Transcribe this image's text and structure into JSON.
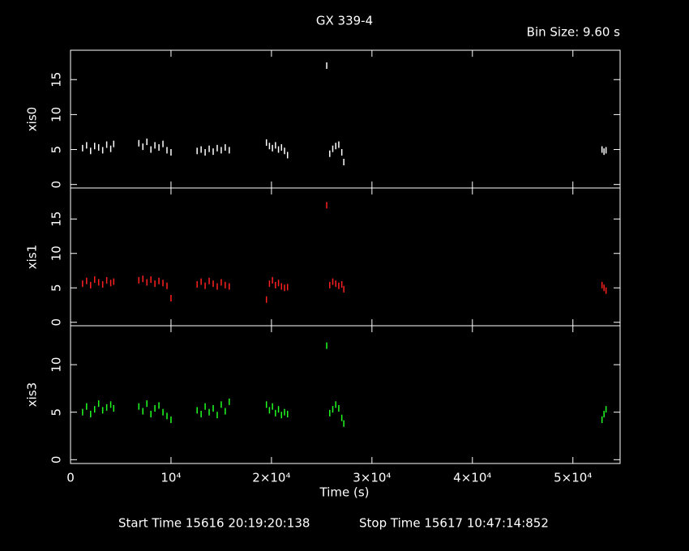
{
  "chart_data": [
    {
      "type": "scatter",
      "title": "GX 339-4",
      "subtitle": "Bin Size: 9.60 s",
      "ylabel": "xis0",
      "color": "#ffffff",
      "x": [
        1200,
        1600,
        2000,
        2400,
        2800,
        3200,
        3600,
        4000,
        4300,
        6800,
        7200,
        7600,
        8000,
        8400,
        8800,
        9200,
        9600,
        10000,
        12600,
        13000,
        13400,
        13800,
        14200,
        14600,
        15000,
        15400,
        15800,
        19500,
        19800,
        20100,
        20400,
        20700,
        21000,
        21300,
        21600,
        25500,
        25800,
        26100,
        26400,
        26700,
        27000,
        27200,
        52900,
        53100,
        53300
      ],
      "values": [
        5.2,
        5.6,
        4.8,
        5.5,
        5.3,
        4.9,
        5.7,
        5.1,
        5.8,
        5.9,
        5.4,
        6.1,
        5.0,
        5.6,
        5.3,
        5.8,
        4.9,
        4.6,
        4.8,
        5.0,
        4.6,
        5.1,
        4.7,
        5.2,
        4.9,
        5.3,
        4.9,
        6.0,
        5.5,
        5.2,
        5.6,
        5.0,
        5.3,
        4.8,
        4.2,
        17.0,
        4.4,
        5.1,
        5.5,
        5.7,
        4.6,
        3.2,
        5.0,
        4.7,
        4.9
      ],
      "ylim": [
        -0.5,
        19.2
      ],
      "yticks": [
        0,
        5,
        10,
        15
      ]
    },
    {
      "type": "scatter",
      "ylabel": "xis1",
      "color": "#ff2020",
      "x": [
        1200,
        1600,
        2000,
        2400,
        2800,
        3200,
        3600,
        4000,
        4300,
        6800,
        7200,
        7600,
        8000,
        8400,
        8800,
        9200,
        9600,
        10000,
        12600,
        13000,
        13400,
        13800,
        14200,
        14600,
        15000,
        15400,
        15800,
        19500,
        19800,
        20100,
        20400,
        20700,
        21000,
        21300,
        21600,
        25500,
        25800,
        26100,
        26400,
        26700,
        27000,
        27200,
        52900,
        53100,
        53300
      ],
      "values": [
        5.6,
        6.0,
        5.4,
        6.2,
        5.8,
        5.5,
        6.1,
        5.7,
        5.9,
        6.1,
        6.3,
        5.8,
        6.2,
        5.6,
        6.0,
        5.7,
        5.3,
        3.5,
        5.5,
        5.9,
        5.3,
        6.0,
        5.6,
        5.2,
        5.8,
        5.4,
        5.2,
        3.3,
        5.6,
        6.1,
        5.4,
        5.7,
        5.2,
        5.0,
        5.1,
        17.0,
        5.4,
        5.9,
        5.6,
        5.3,
        5.5,
        4.8,
        5.4,
        5.0,
        4.6
      ],
      "ylim": [
        -0.5,
        19.5
      ],
      "yticks": [
        0,
        5,
        10,
        15
      ]
    },
    {
      "type": "scatter",
      "ylabel": "xis3",
      "color": "#20ff20",
      "xlabel": "Time (s)",
      "start_time": "Start Time 15616 20:19:20:138",
      "stop_time": "Stop Time 15617 10:47:14:852",
      "x": [
        1200,
        1600,
        2000,
        2400,
        2800,
        3200,
        3600,
        4000,
        4300,
        6800,
        7200,
        7600,
        8000,
        8400,
        8800,
        9200,
        9600,
        10000,
        12600,
        13000,
        13400,
        13800,
        14200,
        14600,
        15000,
        15400,
        15800,
        19500,
        19800,
        20100,
        20400,
        20700,
        21000,
        21300,
        21600,
        25500,
        25800,
        26100,
        26400,
        26700,
        27000,
        27200,
        52900,
        53100,
        53300
      ],
      "values": [
        5.0,
        5.6,
        4.8,
        5.3,
        5.9,
        5.2,
        5.5,
        5.8,
        5.4,
        5.6,
        5.1,
        5.9,
        4.8,
        5.4,
        5.7,
        5.0,
        4.6,
        4.2,
        5.2,
        4.8,
        5.6,
        5.0,
        5.4,
        4.7,
        5.8,
        5.1,
        6.1,
        5.8,
        5.2,
        5.6,
        4.9,
        5.3,
        4.7,
        5.0,
        4.8,
        12.0,
        4.9,
        5.3,
        5.8,
        5.4,
        4.4,
        3.8,
        4.2,
        4.8,
        5.3
      ],
      "ylim": [
        -0.4,
        14.1
      ],
      "yticks": [
        0,
        5,
        10
      ],
      "xlim": [
        0,
        54700
      ],
      "xticks": [
        0,
        {
          "value": 10000,
          "label": "10⁴"
        },
        {
          "value": 20000,
          "label": "2×10⁴"
        },
        {
          "value": 30000,
          "label": "3×10⁴"
        },
        {
          "value": 40000,
          "label": "4×10⁴"
        },
        {
          "value": 50000,
          "label": "5×10⁴"
        }
      ]
    }
  ]
}
